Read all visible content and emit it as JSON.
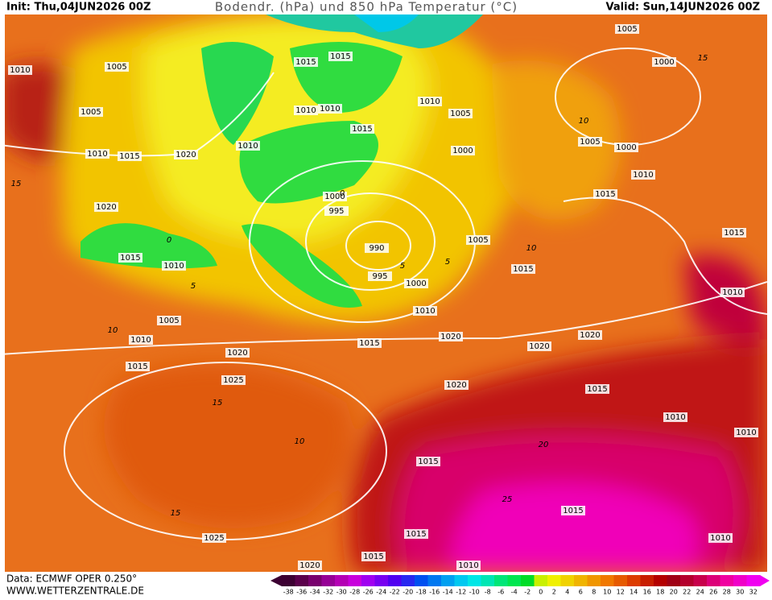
{
  "header": {
    "init": "Init: Thu,04JUN2026 00Z",
    "title": "Bodendr. (hPa) und 850 hPa Temperatur (°C)",
    "valid": "Valid: Sun,14JUN2026 00Z"
  },
  "isobar_labels": [
    1005,
    1000,
    1010,
    1005,
    1015,
    1015,
    1010,
    1005,
    1005,
    1010,
    1010,
    1015,
    1010,
    1015,
    1020,
    1010,
    1000,
    1005,
    1000,
    1010,
    1015,
    1000,
    995,
    1020,
    990,
    1005,
    1015,
    1015,
    1010,
    995,
    1000,
    1015,
    1010,
    1010,
    1005,
    1020,
    1020,
    1010,
    1015,
    1020,
    1020,
    1015,
    1025,
    1020,
    1015,
    1010,
    1010,
    1015,
    1015,
    1025,
    1010,
    1015,
    1015,
    1010,
    1020
  ],
  "temperature_labels": [
    15,
    10,
    5,
    0,
    0,
    5,
    10,
    15,
    10,
    5,
    15,
    20,
    25,
    15,
    10
  ],
  "color_scale": {
    "ticks": [
      -38,
      -36,
      -34,
      -32,
      -30,
      -28,
      -26,
      -24,
      -22,
      -20,
      -18,
      -16,
      -14,
      -12,
      -10,
      -8,
      -6,
      -4,
      -2,
      0,
      2,
      4,
      6,
      8,
      10,
      12,
      14,
      16,
      18,
      20,
      22,
      24,
      26,
      28,
      30,
      32
    ],
    "colors": [
      "#3c0032",
      "#5a004b",
      "#78006e",
      "#960096",
      "#b400b4",
      "#c800dc",
      "#a000f0",
      "#7800f0",
      "#5000f0",
      "#2828f0",
      "#0050f0",
      "#0078f0",
      "#00a0f0",
      "#00c8f0",
      "#00e6e6",
      "#00e6b4",
      "#00e678",
      "#00e650",
      "#00dc28",
      "#c8f000",
      "#f0f000",
      "#f0d200",
      "#f0b400",
      "#f09600",
      "#f07800",
      "#e65a00",
      "#dc3c00",
      "#c81e00",
      "#b40000",
      "#a00014",
      "#b4002d",
      "#c8004b",
      "#dc0078",
      "#f000a0",
      "#f000c8",
      "#f000f0"
    ]
  },
  "footer": {
    "data": "Data: ECMWF OPER 0.250°",
    "site": "WWW.WETTERZENTRALE.DE"
  }
}
